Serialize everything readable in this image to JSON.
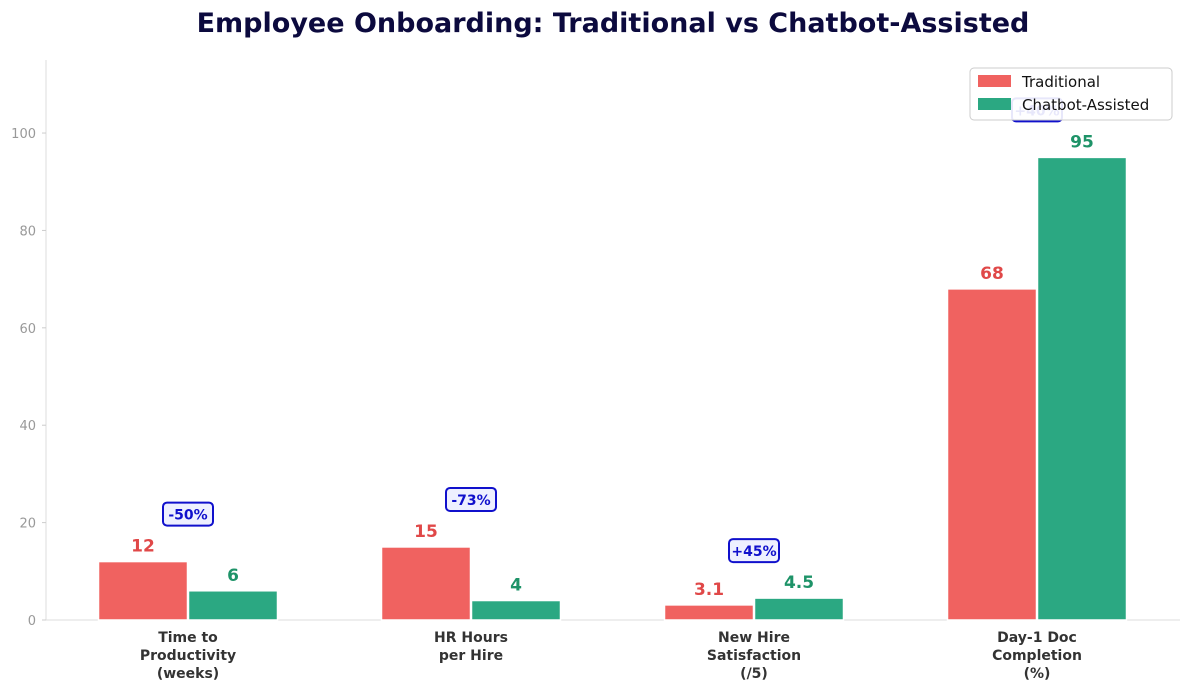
{
  "chart_data": {
    "type": "bar",
    "title": "Employee Onboarding: Traditional vs Chatbot-Assisted",
    "categories": [
      [
        "Time to",
        "Productivity",
        "(weeks)"
      ],
      [
        "HR Hours",
        "per Hire"
      ],
      [
        "New Hire",
        "Satisfaction",
        "(/5)"
      ],
      [
        "Day-1 Doc",
        "Completion",
        "(%)"
      ]
    ],
    "series": [
      {
        "name": "Traditional",
        "color": "#f06260",
        "labelColor": "#e04848",
        "values": [
          12,
          15,
          3.1,
          68
        ],
        "labels": [
          "12",
          "15",
          "3.1",
          "68"
        ]
      },
      {
        "name": "Chatbot-Assisted",
        "color": "#2ba882",
        "labelColor": "#1e9368",
        "values": [
          6,
          4,
          4.5,
          95
        ],
        "labels": [
          "6",
          "4",
          "4.5",
          "95"
        ]
      }
    ],
    "annotations": [
      "-50%",
      "-73%",
      "+45%",
      "+40%"
    ],
    "ylim": [
      0,
      115
    ],
    "yticks": [
      0,
      20,
      40,
      60,
      80,
      100
    ],
    "xlabel": "",
    "ylabel": "",
    "legend": "top-right",
    "grid": false
  }
}
